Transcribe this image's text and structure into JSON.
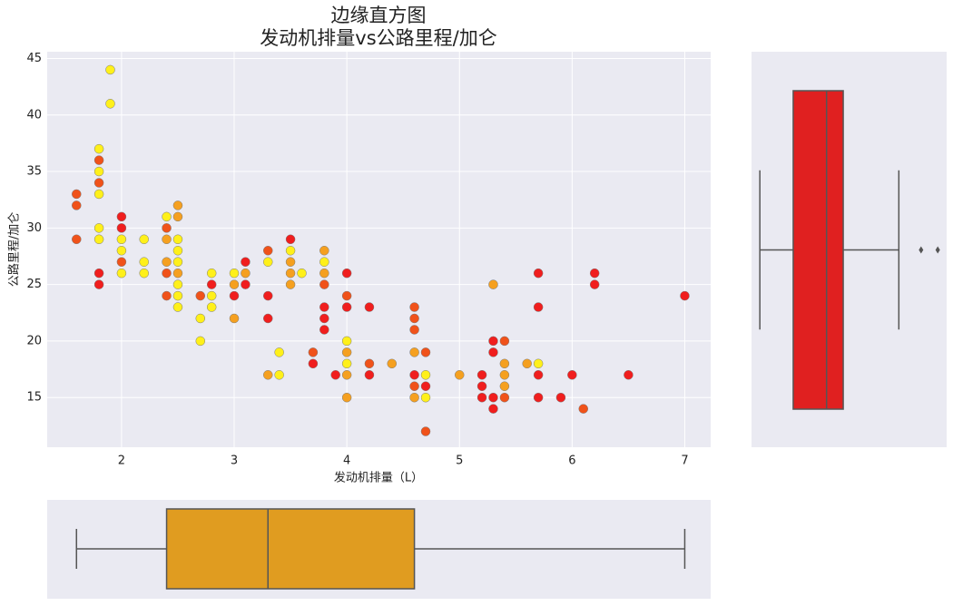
{
  "chart_data": [
    {
      "type": "scatter",
      "title": "边缘直方图",
      "subtitle": "发动机排量vs公路里程/加仑",
      "x_label": "发动机排量（L）",
      "y_label": "公路里程/加仑",
      "xlim": [
        1.34,
        7.23
      ],
      "ylim": [
        10.6,
        45.6
      ],
      "xticks": [
        2,
        3,
        4,
        5,
        6,
        7
      ],
      "yticks": [
        15,
        20,
        25,
        30,
        35,
        40,
        45
      ],
      "grid": true,
      "x": [
        1.6,
        1.6,
        1.6,
        1.8,
        1.8,
        1.8,
        1.8,
        1.8,
        1.8,
        1.8,
        1.8,
        1.8,
        1.9,
        1.9,
        2.0,
        2.0,
        2.0,
        2.0,
        2.0,
        2.0,
        2.2,
        2.2,
        2.2,
        2.4,
        2.4,
        2.4,
        2.4,
        2.4,
        2.4,
        2.5,
        2.5,
        2.5,
        2.5,
        2.5,
        2.5,
        2.5,
        2.5,
        2.5,
        2.7,
        2.7,
        2.7,
        2.8,
        2.8,
        2.8,
        2.8,
        3.0,
        3.0,
        3.0,
        3.0,
        3.1,
        3.1,
        3.1,
        3.3,
        3.3,
        3.3,
        3.3,
        3.3,
        3.4,
        3.4,
        3.5,
        3.5,
        3.5,
        3.5,
        3.5,
        3.6,
        3.7,
        3.7,
        3.8,
        3.8,
        3.8,
        3.8,
        3.8,
        3.8,
        3.8,
        3.9,
        4.0,
        4.0,
        4.0,
        4.0,
        4.0,
        4.0,
        4.0,
        4.0,
        4.2,
        4.2,
        4.2,
        4.4,
        4.6,
        4.6,
        4.6,
        4.6,
        4.6,
        4.6,
        4.6,
        4.7,
        4.7,
        4.7,
        4.7,
        4.7,
        5.0,
        5.2,
        5.2,
        5.2,
        5.3,
        5.3,
        5.3,
        5.3,
        5.3,
        5.4,
        5.4,
        5.4,
        5.4,
        5.4,
        5.6,
        5.7,
        5.7,
        5.7,
        5.7,
        5.7,
        5.9,
        6.0,
        6.1,
        6.2,
        6.2,
        6.5,
        7.0
      ],
      "values": [
        33,
        32,
        29,
        37,
        36,
        35,
        34,
        33,
        30,
        29,
        26,
        25,
        44,
        41,
        31,
        30,
        29,
        28,
        27,
        26,
        29,
        27,
        26,
        31,
        30,
        29,
        27,
        26,
        24,
        32,
        31,
        29,
        28,
        27,
        26,
        25,
        24,
        23,
        24,
        22,
        20,
        26,
        25,
        24,
        23,
        26,
        25,
        24,
        22,
        27,
        26,
        25,
        28,
        27,
        24,
        22,
        17,
        19,
        17,
        29,
        28,
        27,
        26,
        25,
        26,
        19,
        18,
        28,
        27,
        26,
        25,
        23,
        22,
        21,
        17,
        26,
        24,
        23,
        20,
        19,
        18,
        17,
        15,
        23,
        18,
        17,
        18,
        23,
        22,
        21,
        19,
        17,
        16,
        15,
        19,
        17,
        16,
        15,
        12,
        17,
        17,
        16,
        15,
        25,
        20,
        19,
        15,
        14,
        20,
        18,
        17,
        16,
        15,
        18,
        26,
        23,
        18,
        17,
        15,
        15,
        17,
        14,
        26,
        25,
        17,
        24
      ],
      "colors": [
        "#f0521a",
        "#f0521a",
        "#f0521a",
        "#fff01a",
        "#f0521a",
        "#fff01a",
        "#f0521a",
        "#fff01a",
        "#fff01a",
        "#fff01a",
        "#f01e1e",
        "#f01e1e",
        "#fff01a",
        "#fff01a",
        "#f01e1e",
        "#f01e1e",
        "#fff01a",
        "#fff01a",
        "#f0521a",
        "#fff01a",
        "#fff01a",
        "#fff01a",
        "#fff01a",
        "#fff01a",
        "#f0521a",
        "#f5a020",
        "#f5a020",
        "#f0521a",
        "#f0521a",
        "#f5a020",
        "#f5a020",
        "#fff01a",
        "#fff01a",
        "#fff01a",
        "#f5a020",
        "#fff01a",
        "#fff01a",
        "#fff01a",
        "#f0521a",
        "#fff01a",
        "#fff01a",
        "#fff01a",
        "#f01e1e",
        "#fff01a",
        "#fff01a",
        "#fff01a",
        "#f5a020",
        "#f01e1e",
        "#f5a020",
        "#f01e1e",
        "#f5a020",
        "#f01e1e",
        "#f0521a",
        "#fff01a",
        "#f01e1e",
        "#f01e1e",
        "#f5a020",
        "#fff01a",
        "#fff01a",
        "#f01e1e",
        "#fff01a",
        "#f5a020",
        "#f5a020",
        "#f5a020",
        "#fff01a",
        "#f0521a",
        "#f01e1e",
        "#f5a020",
        "#fff01a",
        "#f5a020",
        "#f0521a",
        "#f01e1e",
        "#f01e1e",
        "#f01e1e",
        "#f01e1e",
        "#f01e1e",
        "#f0521a",
        "#f01e1e",
        "#fff01a",
        "#f5a020",
        "#fff01a",
        "#f5a020",
        "#f5a020",
        "#f01e1e",
        "#f0521a",
        "#f01e1e",
        "#f5a020",
        "#f0521a",
        "#f0521a",
        "#f0521a",
        "#f5a020",
        "#f01e1e",
        "#f0521a",
        "#f5a020",
        "#f0521a",
        "#fff01a",
        "#f01e1e",
        "#fff01a",
        "#f0521a",
        "#f5a020",
        "#f01e1e",
        "#f01e1e",
        "#f01e1e",
        "#f5a020",
        "#f01e1e",
        "#f01e1e",
        "#f01e1e",
        "#f01e1e",
        "#f0521a",
        "#f5a020",
        "#f5a020",
        "#f5a020",
        "#f0521a",
        "#f5a020",
        "#f01e1e",
        "#f01e1e",
        "#fff01a",
        "#f01e1e",
        "#f01e1e",
        "#f01e1e",
        "#f01e1e",
        "#f0521a",
        "#f01e1e",
        "#f01e1e",
        "#f01e1e",
        "#f01e1e"
      ]
    },
    {
      "type": "box",
      "orientation": "horizontal",
      "color": "#e02020",
      "xlim": [
        10.5,
        45.6
      ],
      "whisker_low": 12,
      "q1": 18,
      "median": 24,
      "q3": 27,
      "whisker_high": 37,
      "outliers": [
        41,
        44
      ]
    },
    {
      "type": "box",
      "orientation": "horizontal",
      "color": "#e09c20",
      "xlim": [
        1.34,
        7.23
      ],
      "whisker_low": 1.6,
      "q1": 2.4,
      "median": 3.3,
      "q3": 4.6,
      "whisker_high": 7.0,
      "outliers": []
    }
  ]
}
